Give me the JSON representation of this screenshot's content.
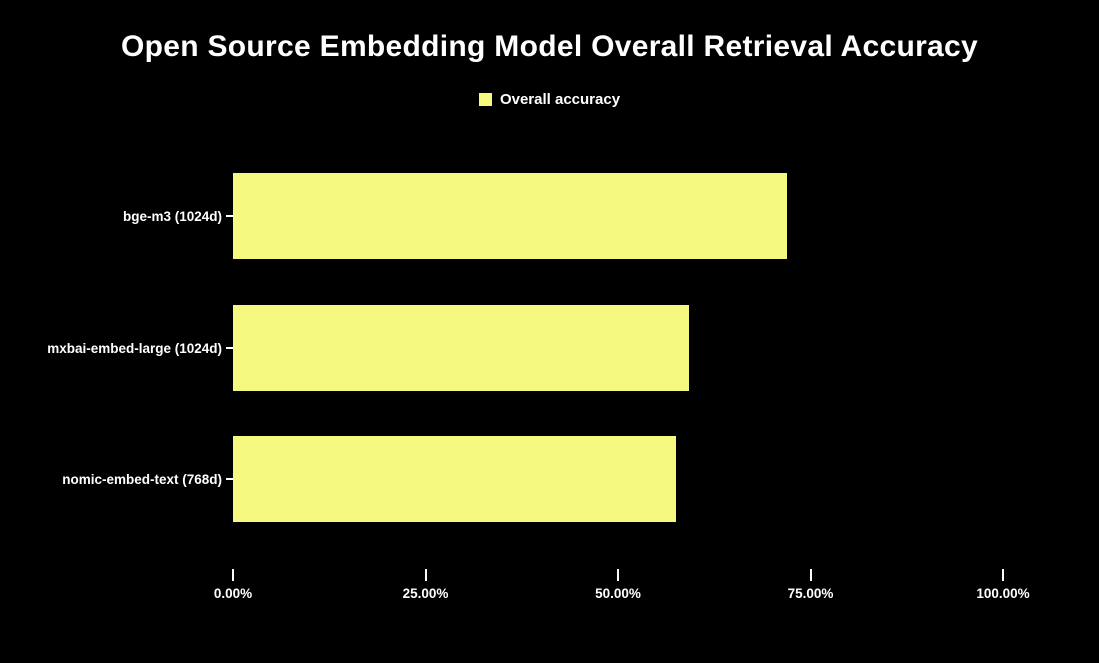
{
  "chart_data": {
    "type": "bar",
    "orientation": "horizontal",
    "title": "Open Source Embedding Model Overall Retrieval Accuracy",
    "legend": {
      "position": "top",
      "items": [
        {
          "label": "Overall accuracy",
          "color": "#F5F97F"
        }
      ]
    },
    "categories": [
      "bge-m3 (1024d)",
      "mxbai-embed-large (1024d)",
      "nomic-embed-text (768d)"
    ],
    "series": [
      {
        "name": "Overall accuracy",
        "values": [
          72.0,
          59.2,
          57.5
        ]
      }
    ],
    "xlabel": "",
    "ylabel": "",
    "x_axis": {
      "min": 0,
      "max": 100,
      "tick_labels": [
        "0.00%",
        "25.00%",
        "50.00%",
        "75.00%",
        "100.00%"
      ],
      "tick_values": [
        0,
        25,
        50,
        75,
        100
      ]
    },
    "grid": false,
    "colors": {
      "background": "#000000",
      "text": "#FFFFFF",
      "bar": "#F5F97F"
    }
  }
}
